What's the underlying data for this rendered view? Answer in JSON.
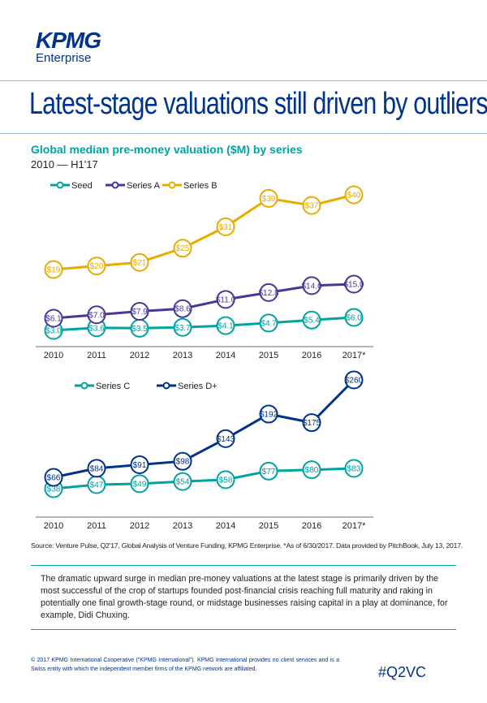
{
  "header": {
    "logo_text": "KPMG",
    "logo_subtext": "Enterprise",
    "title": "Latest-stage valuations still driven by outliers"
  },
  "chart_header": {
    "title": "Global median pre-money valuation ($M) by series",
    "subtitle": "2010 — H1'17"
  },
  "colors": {
    "seed": "#00a3a1",
    "series_a": "#483698",
    "series_b": "#eaaa00",
    "series_c": "#00a3a1",
    "series_d": "#00338d"
  },
  "chart_data": [
    {
      "type": "line",
      "categories": [
        "2010",
        "2011",
        "2012",
        "2013",
        "2014",
        "2015",
        "2016",
        "2017*"
      ],
      "legend_position": "top-left",
      "series": [
        {
          "name": "Seed",
          "values": [
            3.0,
            3.6,
            3.5,
            3.7,
            4.1,
            4.7,
            5.4,
            6.0
          ],
          "labels": [
            "$3.0",
            "$3.6",
            "$3.5",
            "$3.7",
            "$4.1",
            "$4.7",
            "$5.4",
            "$6.0"
          ]
        },
        {
          "name": "Series A",
          "values": [
            6.1,
            7.0,
            7.9,
            8.6,
            11.0,
            12.8,
            14.6,
            15.0
          ],
          "labels": [
            "$6.1",
            "$7.0",
            "$7.9",
            "$8.6",
            "$11.0",
            "$12.8",
            "$14.6",
            "$15.0"
          ]
        },
        {
          "name": "Series B",
          "values": [
            19,
            20,
            21,
            25,
            31,
            39,
            37,
            40
          ],
          "labels": [
            "$19",
            "$20",
            "$21",
            "$25",
            "$31",
            "$39",
            "$37",
            "$40"
          ]
        }
      ]
    },
    {
      "type": "line",
      "categories": [
        "2010",
        "2011",
        "2012",
        "2013",
        "2014",
        "2015",
        "2016",
        "2017*"
      ],
      "legend_position": "top-left",
      "series": [
        {
          "name": "Series C",
          "values": [
            38,
            47,
            49,
            54,
            58,
            77,
            80,
            83
          ],
          "labels": [
            "$38",
            "$47",
            "$49",
            "$54",
            "$58",
            "$77",
            "$80",
            "$83"
          ]
        },
        {
          "name": "Series D+",
          "values": [
            66,
            84,
            91,
            98,
            143,
            192,
            175,
            260
          ],
          "labels": [
            "$66",
            "$84",
            "$91",
            "$98",
            "$143",
            "$192",
            "$175",
            "$260"
          ]
        }
      ]
    }
  ],
  "source": "Source: Venture Pulse, Q2'17, Global Analysis of Venture Funding, KPMG Enterprise. *As of 6/30/2017. Data provided by PitchBook, July 13, 2017.",
  "paragraph": "The dramatic upward surge in median pre-money valuations at the latest stage is primarily driven by the most successful of the crop of startups founded post-financial crisis reaching full maturity and raking in potentially one final growth-stage round, or midstage businesses raising capital in a play at dominance, for example, Didi Chuxing.",
  "footer": {
    "copyright": "© 2017 KPMG International Cooperative (\"KPMG International\"). KPMG International provides no client services and is a Swiss entity with which the independent member firms of the KPMG network are affiliated.",
    "hashtag": "#Q2VC"
  }
}
